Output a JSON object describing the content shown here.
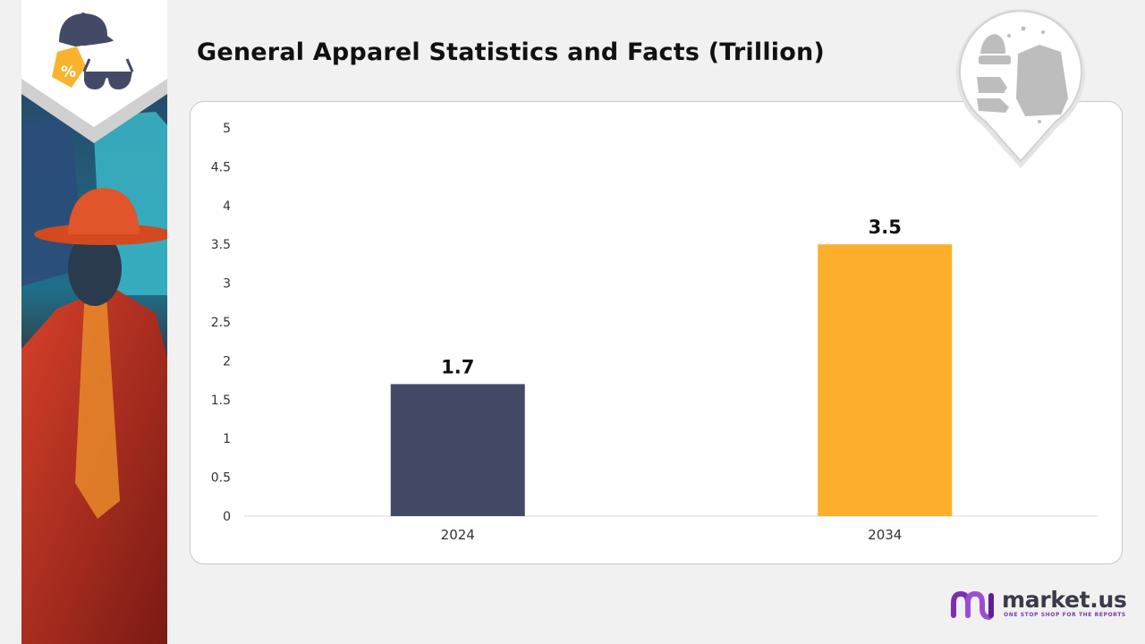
{
  "page": {
    "title": "General Apparel Statistics and Facts (Trillion)"
  },
  "brand": {
    "name": "market.us",
    "tagline": "ONE STOP SHOP FOR THE REPORTS"
  },
  "colors": {
    "bar_2024": "#434a65",
    "bar_2034": "#fcaf2a",
    "tag_icon": "#f9b32d",
    "cap_icon": "#434a65",
    "brand_purple": "#7b2fb5"
  },
  "icons": [
    "cap-icon",
    "price-tag-icon",
    "sunglasses-icon",
    "apparel-pin-icon",
    "market-us-logo-icon"
  ],
  "chart_data": {
    "type": "bar",
    "categories": [
      "2024",
      "2034"
    ],
    "values": [
      1.7,
      3.5
    ],
    "data_labels": [
      "1.7",
      "3.5"
    ],
    "y_ticks": [
      "0",
      "0.5",
      "1",
      "1.5",
      "2",
      "2.5",
      "3",
      "3.5",
      "4",
      "4.5",
      "5"
    ],
    "ylim": [
      0,
      5
    ],
    "grid": false,
    "legend": "none",
    "xlabel": "",
    "ylabel": ""
  }
}
